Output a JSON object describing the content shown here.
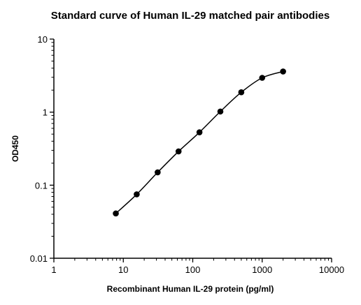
{
  "chart_data": {
    "type": "scatter",
    "title": "Standard curve of Human IL-29 matched pair antibodies",
    "xlabel": "Recombinant Human IL-29 protein (pg/ml)",
    "ylabel": "OD450",
    "x_scale": "log",
    "y_scale": "log",
    "xlim": [
      1,
      10000
    ],
    "ylim": [
      0.01,
      10
    ],
    "x_ticks": [
      "1",
      "10",
      "100",
      "1000",
      "10000"
    ],
    "y_ticks": [
      "0.01",
      "0.1",
      "1",
      "10"
    ],
    "grid": false,
    "legend": "none",
    "fit_line": "smooth curve through points",
    "series": [
      {
        "x": [
          7.8,
          15.6,
          31.25,
          62.5,
          125,
          250,
          500,
          1000,
          2000
        ],
        "y": [
          0.041,
          0.075,
          0.15,
          0.29,
          0.53,
          1.02,
          1.87,
          2.95,
          3.6
        ]
      }
    ],
    "colors": {
      "points": "#000000",
      "curve": "#000000",
      "axes": "#000000"
    }
  }
}
